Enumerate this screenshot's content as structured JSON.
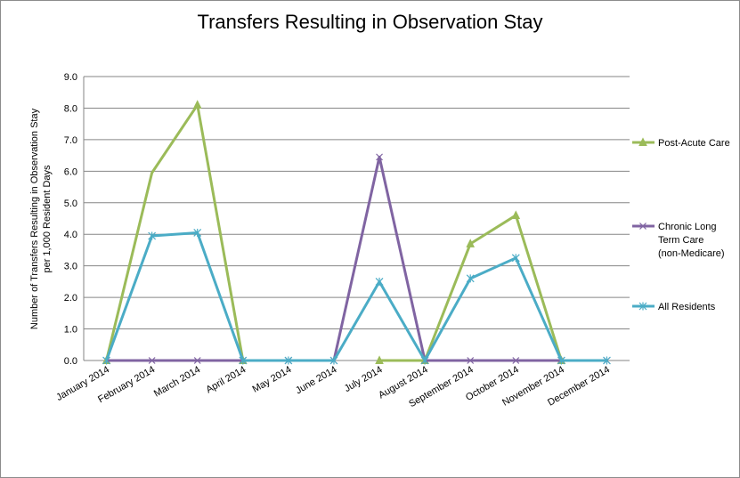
{
  "chart_data": {
    "type": "line",
    "title": "Transfers Resulting in Observation Stay",
    "ylabel_lines": [
      "Number  of Transfers Resulting in Observation Stay",
      "per 1,000 Resident Days"
    ],
    "xlabel": "",
    "categories": [
      "January 2014",
      "February 2014",
      "March 2014",
      "April 2014",
      "May 2014",
      "June 2014",
      "July 2014",
      "August 2014",
      "September 2014",
      "October 2014",
      "November 2014",
      "December 2014"
    ],
    "ylim": [
      0,
      9
    ],
    "yticks": [
      "0.0",
      "1.0",
      "2.0",
      "3.0",
      "4.0",
      "5.0",
      "6.0",
      "7.0",
      "8.0",
      "9.0"
    ],
    "grid": true,
    "legend_position": "right",
    "series": [
      {
        "name": "Post-Acute Care",
        "name_lines": [
          "Post-Acute Care"
        ],
        "color": "#9bbb59",
        "marker": "triangle",
        "values": [
          0,
          null,
          8.1,
          0,
          null,
          null,
          0,
          0,
          3.7,
          4.6,
          0,
          null
        ],
        "segment_values": [
          0,
          5.95,
          8.1,
          0,
          null,
          null,
          0,
          0,
          3.7,
          4.6,
          0,
          null
        ]
      },
      {
        "name": "Chronic Long Term Care (non-Medicare)",
        "name_lines": [
          "Chronic Long",
          "Term Care",
          "(non-Medicare)"
        ],
        "color": "#8064a2",
        "marker": "x",
        "values": [
          0,
          0,
          0,
          0,
          0,
          0,
          6.45,
          0,
          0,
          0,
          0,
          0
        ]
      },
      {
        "name": "All Residents",
        "name_lines": [
          "All Residents"
        ],
        "color": "#4bacc6",
        "marker": "star",
        "values": [
          0,
          3.95,
          4.05,
          0,
          0,
          0,
          2.5,
          0,
          2.6,
          3.25,
          0,
          0
        ]
      }
    ]
  }
}
